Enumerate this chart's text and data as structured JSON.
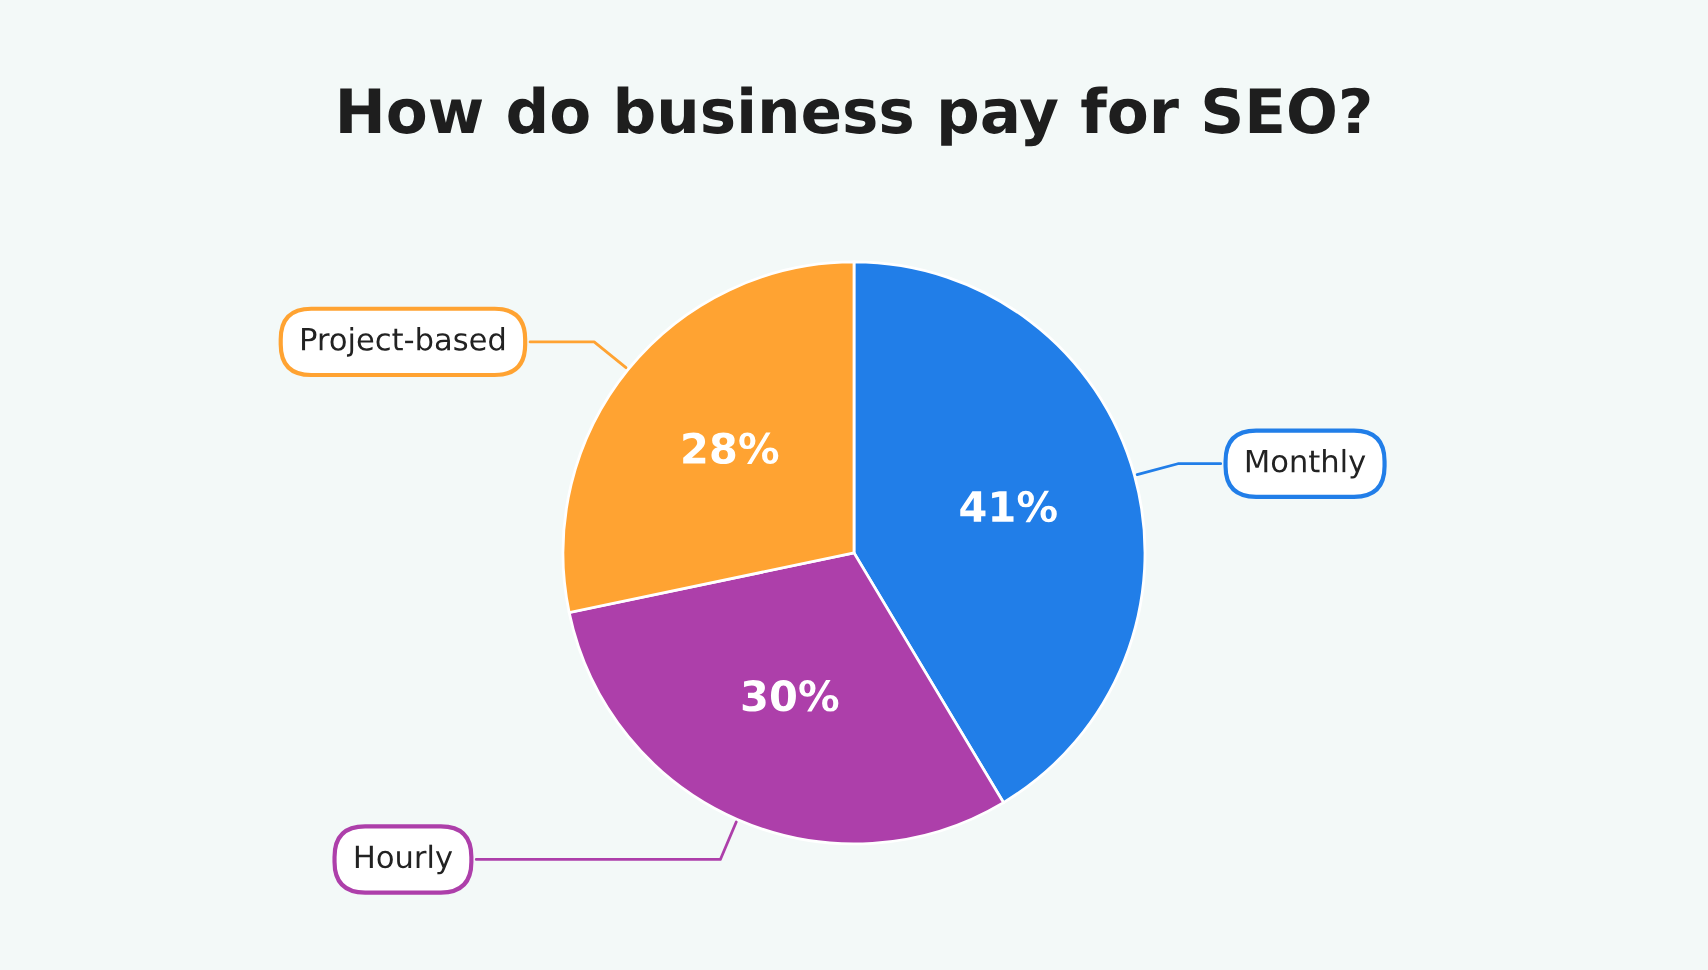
{
  "chart_data": {
    "type": "pie",
    "title": "How do business pay for SEO?",
    "categories": [
      "Monthly",
      "Hourly",
      "Project-based"
    ],
    "values": [
      41,
      30,
      28
    ],
    "colors": [
      "#217ee8",
      "#ad3faa",
      "#ffa332"
    ],
    "value_labels": [
      "41%",
      "30%",
      "28%"
    ]
  }
}
